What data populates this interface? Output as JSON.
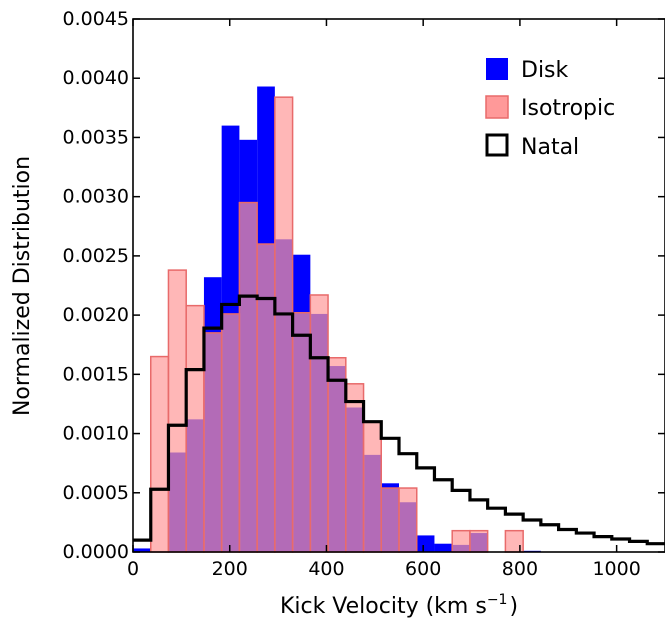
{
  "chart_data": {
    "type": "bar",
    "xlabel": "Kick Velocity (km s",
    "xlabel_superscript": "−1",
    "xlabel_suffix": ")",
    "ylabel": "Normalized Distribution",
    "xlim": [
      0,
      1100
    ],
    "ylim": [
      0,
      0.0045
    ],
    "x_ticks": [
      0,
      200,
      400,
      600,
      800,
      1000
    ],
    "x_tick_labels": [
      "0",
      "200",
      "400",
      "600",
      "800",
      "1000"
    ],
    "y_ticks": [
      0,
      0.0005,
      0.001,
      0.0015,
      0.002,
      0.0025,
      0.003,
      0.0035,
      0.004,
      0.0045
    ],
    "y_tick_labels": [
      "0.0000",
      "0.0005",
      "0.0010",
      "0.0015",
      "0.0020",
      "0.0025",
      "0.0030",
      "0.0035",
      "0.0040",
      "0.0045"
    ],
    "legend_position": "top-right",
    "histogram_bins": {
      "bin_edges": [
        0,
        36.7,
        73.3,
        110,
        146.7,
        183.3,
        220,
        256.7,
        293.3,
        330,
        366.7,
        403.3,
        440,
        476.7,
        513.3,
        550,
        586.7,
        623.3,
        660,
        696.7,
        733.3,
        770,
        806.7,
        843.3,
        880,
        916.7,
        953.3,
        990,
        1026.7,
        1063.3,
        1100
      ]
    },
    "series": [
      {
        "name": "Disk",
        "kind": "filled-histogram",
        "color": "#0000ff",
        "values": [
          3e-05,
          0.0,
          0.00084,
          0.00112,
          0.00232,
          0.0036,
          0.00348,
          0.00393,
          0.00264,
          0.00251,
          0.00201,
          0.00157,
          0.00122,
          0.00082,
          0.00058,
          0.00042,
          0.00014,
          7e-05,
          6e-05,
          0.00016,
          0.0,
          0.0,
          1e-05,
          0.0,
          0.0,
          0.0,
          0.0,
          0.0,
          0.0,
          0.0
        ]
      },
      {
        "name": "Isotropic",
        "kind": "filled-histogram",
        "color": "#ff9999",
        "edge_color": "#e86a6a",
        "values": [
          0.0,
          0.00165,
          0.00238,
          0.00208,
          0.00185,
          0.00201,
          0.00295,
          0.0026,
          0.00384,
          0.00202,
          0.00217,
          0.00164,
          0.00142,
          0.0011,
          0.00054,
          0.00054,
          0.0,
          0.0,
          0.00018,
          0.00018,
          0.0,
          0.00018,
          0.0,
          0.0,
          0.0,
          0.0,
          0.0,
          0.0,
          0.0,
          0.0
        ]
      },
      {
        "name": "Natal",
        "kind": "step-histogram",
        "color": "#000000",
        "values": [
          0.0001,
          0.00053,
          0.00107,
          0.00154,
          0.00189,
          0.00209,
          0.00216,
          0.00214,
          0.00201,
          0.00183,
          0.00164,
          0.00145,
          0.00127,
          0.0011,
          0.00096,
          0.00083,
          0.00071,
          0.00061,
          0.00052,
          0.00044,
          0.00037,
          0.00032,
          0.00027,
          0.00023,
          0.00019,
          0.00016,
          0.00013,
          0.00011,
          9e-05,
          7e-05
        ]
      }
    ]
  }
}
